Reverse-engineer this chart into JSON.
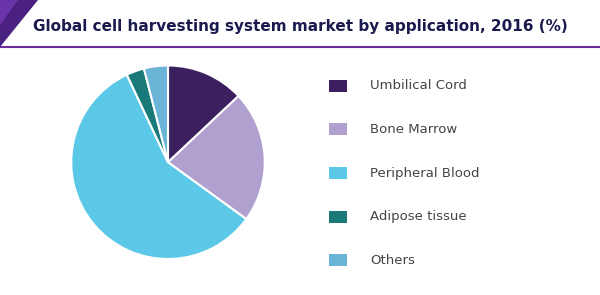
{
  "title": "Global cell harvesting system market by application, 2016 (%)",
  "title_color": "#1a1a4e",
  "title_fontsize": 11,
  "slices": [
    {
      "label": "Umbilical Cord",
      "value": 13,
      "color": "#3b1f5e"
    },
    {
      "label": "Bone Marrow",
      "value": 22,
      "color": "#b0a0d0"
    },
    {
      "label": "Peripheral Blood",
      "value": 58,
      "color": "#5bc8e8"
    },
    {
      "label": "Adipose tissue",
      "value": 3,
      "color": "#1a7a7a"
    },
    {
      "label": "Others",
      "value": 4,
      "color": "#6ab4d8"
    }
  ],
  "legend_colors": [
    "#3b1f5e",
    "#b0a0d0",
    "#5bc8e8",
    "#1a7a7a",
    "#6ab4d8"
  ],
  "legend_labels": [
    "Umbilical Cord",
    "Bone Marrow",
    "Peripheral Blood",
    "Adipose tissue",
    "Others"
  ],
  "bg_color": "#ffffff",
  "start_angle": 90,
  "header_triangle_color": "#3d1a6e",
  "header_line_color": "#6a2d9e"
}
